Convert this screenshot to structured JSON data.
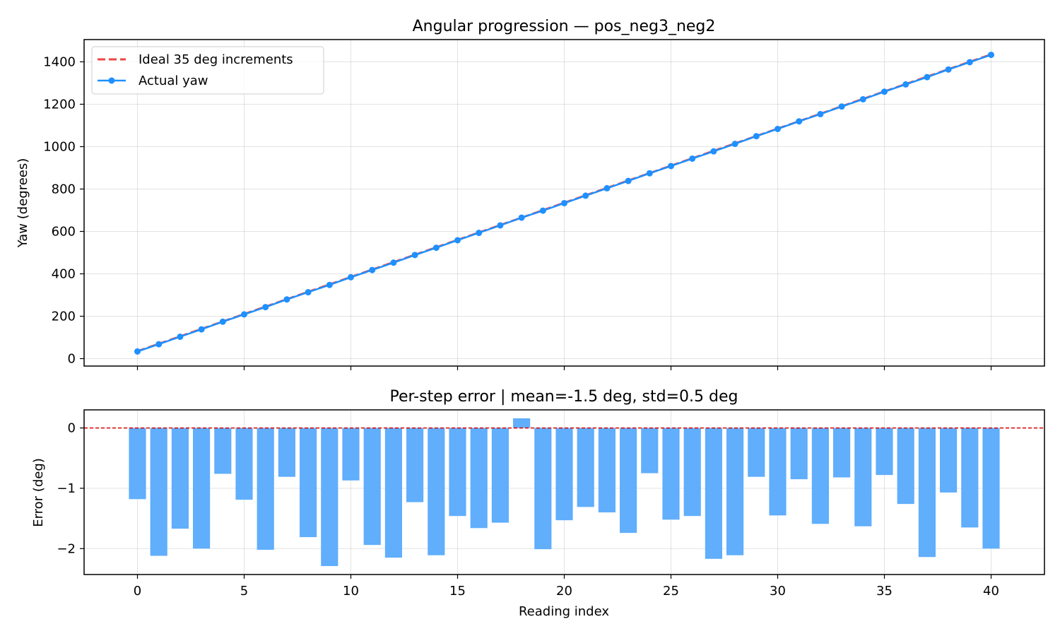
{
  "chart_data": [
    {
      "type": "line",
      "title": "Angular progression — pos_neg3_neg2",
      "xlabel": "",
      "ylabel": "Yaw (degrees)",
      "xlim": [
        -2.5,
        42.5
      ],
      "ylim": [
        -35,
        1505
      ],
      "yticks": [
        0,
        200,
        400,
        600,
        800,
        1000,
        1200,
        1400
      ],
      "grid": true,
      "legend": "upper left",
      "series": [
        {
          "name": "Ideal 35 deg increments",
          "style": "dashed",
          "color": "#ef4444",
          "x": [
            0,
            40
          ],
          "y": [
            35,
            1435
          ]
        },
        {
          "name": "Actual yaw",
          "style": "solid-markers",
          "color": "#1e90ff",
          "x": [
            0,
            1,
            2,
            3,
            4,
            5,
            6,
            7,
            8,
            9,
            10,
            11,
            12,
            13,
            14,
            15,
            16,
            17,
            18,
            19,
            20,
            21,
            22,
            23,
            24,
            25,
            26,
            27,
            28,
            29,
            30,
            31,
            32,
            33,
            34,
            35,
            36,
            37,
            38,
            39,
            40
          ],
          "y": [
            33.8,
            67.9,
            103.3,
            138.0,
            174.2,
            208.8,
            243.0,
            279.2,
            313.2,
            347.7,
            384.1,
            418.1,
            452.8,
            488.8,
            522.9,
            558.5,
            593.3,
            628.4,
            665.2,
            698.0,
            733.5,
            768.7,
            803.6,
            838.3,
            874.2,
            908.5,
            943.5,
            977.8,
            1012.9,
            1049.2,
            1083.5,
            1119.2,
            1153.4,
            1189.2,
            1223.4,
            1259.2,
            1293.7,
            1327.8,
            1363.9,
            1398.4,
            1433.0
          ]
        }
      ]
    },
    {
      "type": "bar",
      "title": "Per-step error  |  mean=-1.5 deg,  std=0.5 deg",
      "xlabel": "Reading index",
      "ylabel": "Error (deg)",
      "xlim": [
        -2.5,
        42.5
      ],
      "ylim": [
        -2.43,
        0.3
      ],
      "xticks": [
        0,
        5,
        10,
        15,
        20,
        25,
        30,
        35,
        40
      ],
      "yticks": [
        0,
        -1,
        -2
      ],
      "grid": true,
      "reference_line": {
        "y": 0,
        "color": "#dd0000",
        "style": "dashed"
      },
      "color": "#60aefc",
      "x": [
        0,
        1,
        2,
        3,
        4,
        5,
        6,
        7,
        8,
        9,
        10,
        11,
        12,
        13,
        14,
        15,
        16,
        17,
        18,
        19,
        20,
        21,
        22,
        23,
        24,
        25,
        26,
        27,
        28,
        29,
        30,
        31,
        32,
        33,
        34,
        35,
        36,
        37,
        38,
        39,
        40
      ],
      "values": [
        -1.18,
        -2.12,
        -1.67,
        -2.0,
        -0.76,
        -1.19,
        -2.02,
        -0.81,
        -1.81,
        -2.29,
        -0.87,
        -1.94,
        -2.15,
        -1.23,
        -2.11,
        -1.46,
        -1.66,
        -1.57,
        0.16,
        -2.01,
        -1.53,
        -1.31,
        -1.4,
        -1.74,
        -0.75,
        -1.52,
        -1.46,
        -2.17,
        -2.11,
        -0.81,
        -1.45,
        -0.85,
        -1.59,
        -0.82,
        -1.63,
        -0.78,
        -1.26,
        -2.14,
        -1.07,
        -1.65,
        -2.0
      ]
    }
  ],
  "tick_text": {
    "top_y": [
      "0",
      "200",
      "400",
      "600",
      "800",
      "1000",
      "1200",
      "1400"
    ],
    "bottom_y": [
      "0",
      "−1",
      "−2"
    ],
    "bottom_x": [
      "0",
      "5",
      "10",
      "15",
      "20",
      "25",
      "30",
      "35",
      "40"
    ]
  }
}
